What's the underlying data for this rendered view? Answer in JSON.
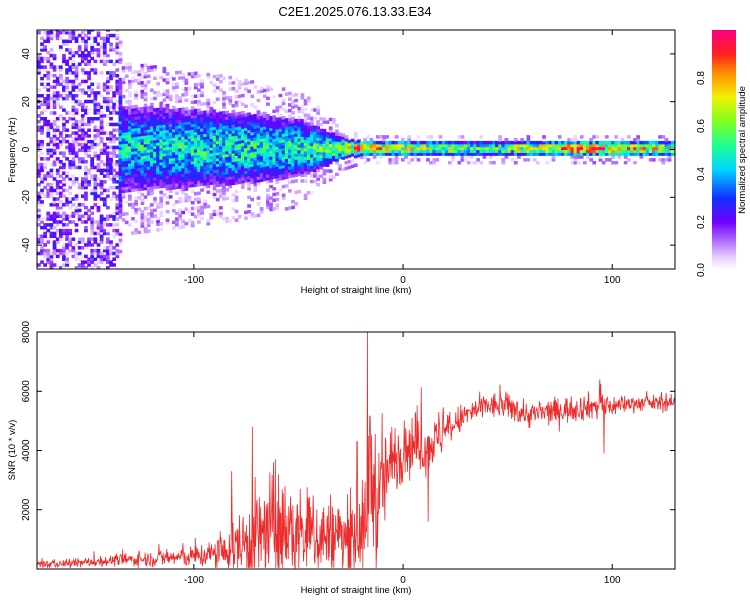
{
  "title": "C2E1.2025.076.13.33.E34",
  "colors": {
    "snr_line": "#ee2a2a",
    "spectrogram_palette": [
      "#f7ecff",
      "#d9b8ff",
      "#9d5cff",
      "#6a00ff",
      "#1a3cff",
      "#00e0ff",
      "#30ff80",
      "#a0ff20",
      "#ffd000",
      "#ff4040",
      "#ff0080"
    ]
  },
  "chart_data": [
    {
      "type": "heatmap",
      "name": "spectrogram",
      "xlabel": "Height of straight line (km)",
      "ylabel": "Frequency (Hz)",
      "xlim": [
        -175,
        130
      ],
      "ylim": [
        -50,
        50
      ],
      "xticks": [
        -100,
        0,
        100
      ],
      "yticks": [
        -40,
        -20,
        0,
        20,
        40
      ],
      "xtick_labels": [
        "-100",
        "0",
        "100"
      ],
      "ytick_labels": [
        "-40",
        "-20",
        "0",
        "20",
        "40"
      ],
      "colorbar": {
        "label": "Normalized spectral amplitude",
        "range": [
          0,
          1
        ],
        "ticks": [
          0.0,
          0.2,
          0.4,
          0.6,
          0.8
        ],
        "tick_labels": [
          "0.0",
          "0.2",
          "0.4",
          "0.6",
          "0.8"
        ]
      },
      "profile": [
        {
          "x": -175,
          "spread_hz": 50,
          "peak": 0.25
        },
        {
          "x": -140,
          "spread_hz": 50,
          "peak": 0.25
        },
        {
          "x": -135,
          "spread_hz": 12,
          "peak": 0.5
        },
        {
          "x": -80,
          "spread_hz": 10,
          "peak": 0.55
        },
        {
          "x": -50,
          "spread_hz": 8,
          "peak": 0.55
        },
        {
          "x": -30,
          "spread_hz": 3,
          "peak": 0.7
        },
        {
          "x": -20,
          "spread_hz": 2,
          "peak": 0.95
        },
        {
          "x": 0,
          "spread_hz": 2,
          "peak": 0.8
        },
        {
          "x": 40,
          "spread_hz": 2,
          "peak": 0.6
        },
        {
          "x": 80,
          "spread_hz": 2,
          "peak": 0.95
        },
        {
          "x": 95,
          "spread_hz": 2,
          "peak": 0.95
        },
        {
          "x": 130,
          "spread_hz": 2,
          "peak": 0.75
        }
      ]
    },
    {
      "type": "line",
      "name": "snr",
      "xlabel": "Height of straight line (km)",
      "ylabel": "SNR (10 * v/v)",
      "xlim": [
        -175,
        130
      ],
      "ylim": [
        0,
        8000
      ],
      "xticks": [
        -100,
        0,
        100
      ],
      "yticks": [
        2000,
        4000,
        6000,
        8000
      ],
      "xtick_labels": [
        "-100",
        "0",
        "100"
      ],
      "ytick_labels": [
        "2000",
        "4000",
        "6000",
        "8000"
      ],
      "x": [
        -175,
        -160,
        -140,
        -120,
        -100,
        -85,
        -75,
        -65,
        -55,
        -45,
        -35,
        -25,
        -18,
        -16,
        -12,
        -8,
        -4,
        0,
        5,
        10,
        15,
        20,
        30,
        40,
        50,
        60,
        70,
        80,
        90,
        95,
        100,
        110,
        120,
        130
      ],
      "mean": [
        150,
        180,
        280,
        350,
        420,
        550,
        900,
        1250,
        1200,
        1150,
        1100,
        1000,
        1300,
        3500,
        2200,
        3200,
        3700,
        4100,
        4200,
        4100,
        4300,
        4600,
        5200,
        5500,
        5500,
        5200,
        5300,
        5400,
        5500,
        5500,
        5500,
        5600,
        5600,
        5600
      ],
      "noise": [
        80,
        80,
        100,
        150,
        200,
        350,
        800,
        1100,
        900,
        850,
        800,
        700,
        900,
        1500,
        1200,
        900,
        700,
        600,
        600,
        500,
        450,
        350,
        250,
        250,
        250,
        250,
        250,
        250,
        250,
        300,
        200,
        150,
        150,
        150
      ],
      "spikes": [
        {
          "x": -72,
          "y": 4800
        },
        {
          "x": -82,
          "y": 3300
        },
        {
          "x": -62,
          "y": 3600
        },
        {
          "x": -22,
          "y": 4300
        },
        {
          "x": -17,
          "y": 8000
        },
        {
          "x": 12,
          "y": 1600
        },
        {
          "x": 17,
          "y": 5300
        },
        {
          "x": 96,
          "y": 3900
        },
        {
          "x": 94,
          "y": 6400
        }
      ]
    }
  ]
}
